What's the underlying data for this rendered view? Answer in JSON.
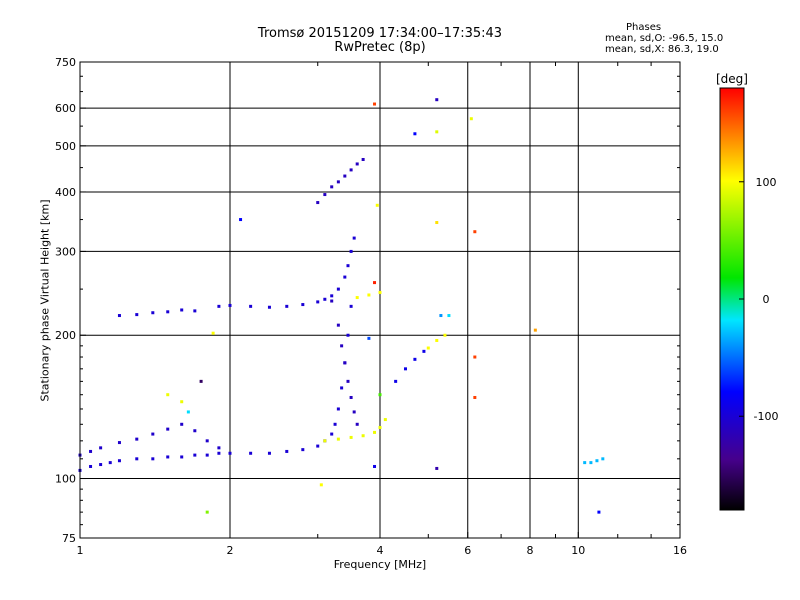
{
  "header": {
    "title_line1": "Tromsø 20151209 17:34:00–17:35:43",
    "title_line2": "RwPretec (8p)"
  },
  "phases": {
    "title": "Phases",
    "line_o": "mean, sd,O: -96.5, 15.0",
    "line_x": "mean, sd,X:  86.3, 19.0"
  },
  "colorbar": {
    "unit_label": "[deg]",
    "ticks": [
      {
        "label": "100",
        "value": 100
      },
      {
        "label": "0",
        "value": 0
      },
      {
        "label": "-100",
        "value": -100
      }
    ],
    "range": [
      -180,
      180
    ]
  },
  "chart_data": {
    "type": "scatter",
    "title": "Tromsø 20151209 17:34:00–17:35:43",
    "subtitle": "RwPretec (8p)",
    "xlabel": "Frequency [MHz]",
    "ylabel": "Stationary phase Virtual Height [km]",
    "xscale": "log",
    "yscale": "log",
    "xlim": [
      1,
      16
    ],
    "ylim": [
      75,
      750
    ],
    "xticks": [
      {
        "label": "1",
        "value": 1
      },
      {
        "label": "2",
        "value": 2
      },
      {
        "label": "4",
        "value": 4
      },
      {
        "label": "6",
        "value": 6
      },
      {
        "label": "8",
        "value": 8
      },
      {
        "label": "10",
        "value": 10
      },
      {
        "label": "16",
        "value": 16
      }
    ],
    "yticks": [
      {
        "label": "75",
        "value": 75
      },
      {
        "label": "100",
        "value": 100
      },
      {
        "label": "200",
        "value": 200
      },
      {
        "label": "300",
        "value": 300
      },
      {
        "label": "400",
        "value": 400
      },
      {
        "label": "500",
        "value": 500
      },
      {
        "label": "600",
        "value": 600
      },
      {
        "label": "750",
        "value": 750
      }
    ],
    "grid": true,
    "color_scale": "phase [deg], -180 black → blue → cyan → green → yellow → red 180",
    "traces": [
      {
        "points": [
          [
            1.0,
            104
          ],
          [
            1.05,
            106
          ],
          [
            1.1,
            107
          ],
          [
            1.15,
            108
          ],
          [
            1.2,
            109
          ],
          [
            1.3,
            110
          ],
          [
            1.4,
            110
          ],
          [
            1.5,
            111
          ],
          [
            1.6,
            111
          ],
          [
            1.7,
            112
          ],
          [
            1.8,
            112
          ],
          [
            1.9,
            113
          ],
          [
            2.0,
            113
          ],
          [
            2.2,
            113
          ],
          [
            2.4,
            113
          ],
          [
            2.6,
            114
          ],
          [
            2.8,
            115
          ],
          [
            3.0,
            117
          ],
          [
            3.1,
            120
          ],
          [
            3.2,
            124
          ],
          [
            3.25,
            130
          ],
          [
            3.3,
            140
          ],
          [
            3.35,
            155
          ],
          [
            3.4,
            175
          ],
          [
            3.45,
            200
          ],
          [
            3.5,
            230
          ]
        ],
        "phase": -100
      },
      {
        "points": [
          [
            1.0,
            112
          ],
          [
            1.05,
            114
          ],
          [
            1.1,
            116
          ],
          [
            1.2,
            119
          ],
          [
            1.3,
            121
          ],
          [
            1.4,
            124
          ],
          [
            1.5,
            127
          ],
          [
            1.6,
            130
          ],
          [
            1.7,
            126
          ],
          [
            1.8,
            120
          ],
          [
            1.9,
            116
          ]
        ],
        "phase": -105
      },
      {
        "points": [
          [
            1.2,
            220
          ],
          [
            1.3,
            221
          ],
          [
            1.4,
            223
          ],
          [
            1.5,
            224
          ],
          [
            1.6,
            226
          ],
          [
            1.7,
            225
          ]
        ],
        "phase": -100
      },
      {
        "points": [
          [
            1.9,
            230
          ],
          [
            2.0,
            231
          ],
          [
            2.2,
            230
          ],
          [
            2.4,
            229
          ],
          [
            2.6,
            230
          ],
          [
            2.8,
            232
          ],
          [
            3.0,
            235
          ],
          [
            3.1,
            238
          ],
          [
            3.2,
            242
          ],
          [
            3.3,
            250
          ],
          [
            3.4,
            265
          ],
          [
            3.45,
            280
          ],
          [
            3.5,
            300
          ],
          [
            3.55,
            320
          ]
        ],
        "phase": -100
      },
      {
        "points": [
          [
            3.2,
            236
          ],
          [
            3.3,
            210
          ],
          [
            3.35,
            190
          ],
          [
            3.4,
            175
          ],
          [
            3.45,
            160
          ],
          [
            3.5,
            148
          ],
          [
            3.55,
            138
          ],
          [
            3.6,
            130
          ]
        ],
        "phase": -110
      },
      {
        "points": [
          [
            3.0,
            380
          ],
          [
            3.1,
            395
          ],
          [
            3.2,
            410
          ],
          [
            3.3,
            420
          ],
          [
            3.4,
            432
          ],
          [
            3.5,
            445
          ],
          [
            3.6,
            458
          ],
          [
            3.7,
            468
          ]
        ],
        "phase": -110
      },
      {
        "points": [
          [
            3.1,
            120
          ],
          [
            3.3,
            121
          ],
          [
            3.5,
            122
          ],
          [
            3.7,
            123
          ],
          [
            3.9,
            125
          ],
          [
            4.0,
            128
          ],
          [
            4.1,
            133
          ]
        ],
        "phase": 95
      },
      {
        "points": [
          [
            3.6,
            240
          ],
          [
            3.8,
            243
          ],
          [
            4.0,
            246
          ]
        ],
        "phase": 100
      },
      {
        "points": [
          [
            4.3,
            160
          ],
          [
            4.5,
            170
          ],
          [
            4.7,
            178
          ],
          [
            4.9,
            185
          ]
        ],
        "phase": -90
      },
      {
        "points": [
          [
            5.0,
            188
          ],
          [
            5.2,
            195
          ],
          [
            5.4,
            200
          ]
        ],
        "phase": 100
      },
      {
        "points": [
          [
            10.3,
            108
          ],
          [
            10.6,
            108
          ],
          [
            10.9,
            109
          ],
          [
            11.2,
            110
          ]
        ],
        "phase": -30
      }
    ],
    "points": [
      {
        "x": 3.9,
        "y": 612,
        "phase": 160
      },
      {
        "x": 5.2,
        "y": 625,
        "phase": -110
      },
      {
        "x": 4.7,
        "y": 530,
        "phase": -80
      },
      {
        "x": 5.2,
        "y": 535,
        "phase": 90
      },
      {
        "x": 6.1,
        "y": 570,
        "phase": 95
      },
      {
        "x": 3.95,
        "y": 375,
        "phase": 100
      },
      {
        "x": 5.2,
        "y": 345,
        "phase": 110
      },
      {
        "x": 6.2,
        "y": 330,
        "phase": 160
      },
      {
        "x": 2.1,
        "y": 350,
        "phase": -80
      },
      {
        "x": 5.3,
        "y": 220,
        "phase": -40
      },
      {
        "x": 5.5,
        "y": 220,
        "phase": -20
      },
      {
        "x": 8.2,
        "y": 205,
        "phase": 130
      },
      {
        "x": 6.2,
        "y": 180,
        "phase": 160
      },
      {
        "x": 6.2,
        "y": 148,
        "phase": 160
      },
      {
        "x": 5.2,
        "y": 105,
        "phase": -120
      },
      {
        "x": 3.9,
        "y": 106,
        "phase": -90
      },
      {
        "x": 3.05,
        "y": 97,
        "phase": 100
      },
      {
        "x": 1.8,
        "y": 85,
        "phase": 60
      },
      {
        "x": 11.0,
        "y": 85,
        "phase": -80
      },
      {
        "x": 3.9,
        "y": 258,
        "phase": 170
      },
      {
        "x": 1.75,
        "y": 160,
        "phase": -150
      },
      {
        "x": 1.5,
        "y": 150,
        "phase": 95
      },
      {
        "x": 1.6,
        "y": 145,
        "phase": 95
      },
      {
        "x": 1.65,
        "y": 138,
        "phase": -20
      },
      {
        "x": 1.85,
        "y": 202,
        "phase": 100
      },
      {
        "x": 3.8,
        "y": 197,
        "phase": -60
      },
      {
        "x": 4.0,
        "y": 150,
        "phase": 40
      }
    ]
  }
}
